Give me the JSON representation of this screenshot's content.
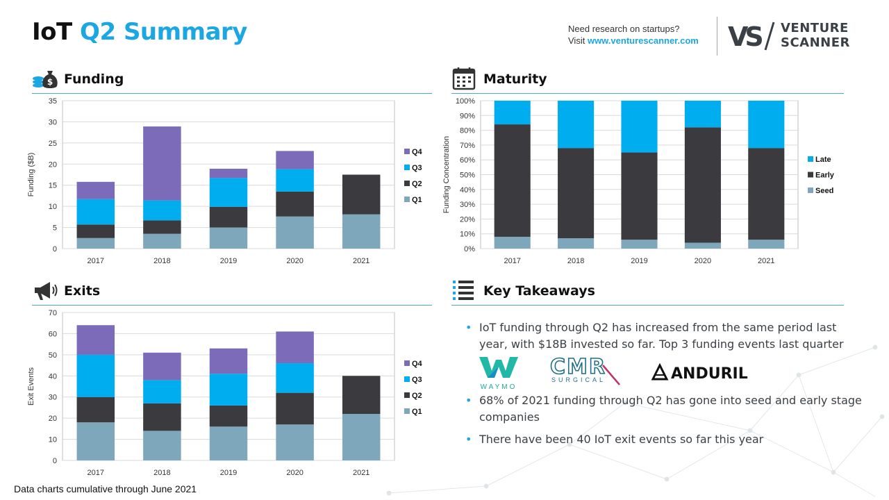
{
  "header": {
    "title_part1": "IoT",
    "title_part2": "Q2 Summary",
    "promo_line1": "Need research on startups?",
    "promo_visit": "Visit",
    "promo_link": "www.venturescanner.com",
    "logo_mark": "VS",
    "logo_line1": "VENTURE",
    "logo_line2": "SCANNER"
  },
  "sections": {
    "funding": "Funding",
    "maturity": "Maturity",
    "exits": "Exits",
    "takeaways": "Key Takeaways"
  },
  "icons": {
    "funding": "money-bag-icon",
    "maturity": "calendar-icon",
    "exits": "megaphone-icon",
    "takeaways": "list-icon"
  },
  "colors": {
    "accent": "#1ca7e3",
    "q1_seed": "#7fa7bc",
    "q2_early": "#3b3b3f",
    "q3_late": "#00aeef",
    "q4": "#7b6bb8"
  },
  "chart_data": [
    {
      "id": "funding",
      "type": "bar",
      "stacked": true,
      "categories": [
        "2017",
        "2018",
        "2019",
        "2020",
        "2021"
      ],
      "series": [
        {
          "name": "Q1",
          "values": [
            2.5,
            3.5,
            5.0,
            7.6,
            8.1
          ]
        },
        {
          "name": "Q2",
          "values": [
            3.2,
            3.2,
            4.9,
            5.9,
            9.4
          ]
        },
        {
          "name": "Q3",
          "values": [
            6.0,
            4.7,
            6.8,
            5.3,
            0
          ]
        },
        {
          "name": "Q4",
          "values": [
            4.1,
            17.5,
            2.2,
            4.3,
            0
          ]
        }
      ],
      "ylabel": "Funding ($B)",
      "ylim": [
        0,
        35
      ],
      "yticks": [
        "0",
        "5",
        "10",
        "15",
        "20",
        "25",
        "30",
        "35"
      ],
      "grid": true,
      "legend": "right"
    },
    {
      "id": "maturity",
      "type": "bar",
      "stacked": true,
      "percent": true,
      "categories": [
        "2017",
        "2018",
        "2019",
        "2020",
        "2021"
      ],
      "series": [
        {
          "name": "Seed",
          "values": [
            8,
            7,
            6,
            4,
            6
          ]
        },
        {
          "name": "Early",
          "values": [
            76,
            61,
            59,
            78,
            62
          ]
        },
        {
          "name": "Late",
          "values": [
            16,
            32,
            35,
            18,
            32
          ]
        }
      ],
      "ylabel": "Funding Concentration",
      "ylim": [
        0,
        100
      ],
      "yticks": [
        "0%",
        "10%",
        "20%",
        "30%",
        "40%",
        "50%",
        "60%",
        "70%",
        "80%",
        "90%",
        "100%"
      ],
      "grid": true,
      "legend": "right"
    },
    {
      "id": "exits",
      "type": "bar",
      "stacked": true,
      "categories": [
        "2017",
        "2018",
        "2019",
        "2020",
        "2021"
      ],
      "series": [
        {
          "name": "Q1",
          "values": [
            18,
            14,
            16,
            17,
            22
          ]
        },
        {
          "name": "Q2",
          "values": [
            12,
            13,
            10,
            15,
            18
          ]
        },
        {
          "name": "Q3",
          "values": [
            20,
            11,
            15,
            14,
            0
          ]
        },
        {
          "name": "Q4",
          "values": [
            14,
            13,
            12,
            15,
            0
          ]
        }
      ],
      "ylabel": "Exit Events",
      "ylim": [
        0,
        70
      ],
      "yticks": [
        "0",
        "10",
        "20",
        "30",
        "40",
        "50",
        "60",
        "70"
      ],
      "grid": true,
      "legend": "right"
    }
  ],
  "takeaways": {
    "bullet_glyph": "•",
    "items": [
      "IoT funding through Q2 has increased from the same period last year, with $18B invested so far. Top 3 funding events last quarter",
      "68% of 2021 funding through Q2 has gone into seed and early stage companies",
      "There have been 40 IoT exit events so far this year"
    ],
    "companies": {
      "waymo": "WAYMO",
      "cmr_mark": "CMR",
      "cmr_sub": "SURGICAL",
      "anduril": "ANDURIL"
    }
  },
  "footnote": "Data charts cumulative through June 2021"
}
